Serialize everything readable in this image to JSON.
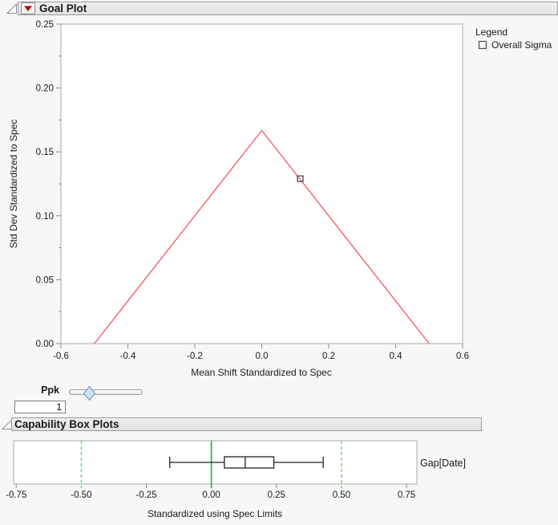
{
  "colors": {
    "page_bg": "#f7f7f7",
    "panel_bg": "#ffffff",
    "header_bg_top": "#f1f1f1",
    "header_bg_bottom": "#e2e2e2",
    "header_border": "#9b9b9b",
    "frame_border": "#a8a8a8",
    "tick": "#8c8c8c",
    "text": "#1a1a1a",
    "goal_line": "#ef5f70",
    "marker_stroke": "#3c3c3c",
    "spec_solid_green": "#46bd46",
    "spec_dash_green": "#72d872",
    "box_stroke": "#222222",
    "red_triangle": "#c00505",
    "slider_thumb_fill": "#cfe2f5",
    "slider_thumb_stroke": "#6a8fbf"
  },
  "goal_plot_section": {
    "title": "Goal Plot",
    "legend_title": "Legend",
    "legend_item": "Overall Sigma",
    "ppk_label": "Ppk",
    "ppk_value": "1"
  },
  "box_plots_section": {
    "title": "Capability Box Plots",
    "row_label": "Gap[Date]"
  },
  "chart_data": [
    {
      "type": "line",
      "name": "goal-plot",
      "xlabel": "Mean Shift Standardized to Spec",
      "ylabel": "Std Dev Standardized to Spec",
      "xlim": [
        -0.6,
        0.6
      ],
      "ylim": [
        0,
        0.25
      ],
      "x_ticks": [
        -0.6,
        -0.4,
        -0.2,
        0.0,
        0.2,
        0.4,
        0.6
      ],
      "x_tick_labels": [
        "-0.6",
        "-0.4",
        "-0.2",
        "0.0",
        "0.2",
        "0.4",
        "0.6"
      ],
      "y_ticks": [
        0.0,
        0.05,
        0.1,
        0.15,
        0.2,
        0.25
      ],
      "y_tick_labels": [
        "0.00",
        "0.05",
        "0.10",
        "0.15",
        "0.20",
        "0.25"
      ],
      "y_minor_step": 0.025,
      "triangle_line": [
        [
          -0.5,
          0
        ],
        [
          0,
          0.1667
        ],
        [
          0.5,
          0
        ]
      ],
      "points": [
        {
          "label": "Overall Sigma",
          "x": 0.115,
          "y": 0.129,
          "marker": "square-outline"
        }
      ],
      "legend_position": "right",
      "grid": false
    },
    {
      "type": "boxplot",
      "name": "capability-box-plot",
      "xlabel": "Standardized using Spec Limits",
      "row_label": "Gap[Date]",
      "xlim": [
        -0.76,
        0.79
      ],
      "x_ticks": [
        -0.75,
        -0.5,
        -0.25,
        0.0,
        0.25,
        0.5,
        0.75
      ],
      "x_tick_labels": [
        "-0.75",
        "-0.50",
        "-0.25",
        "0.00",
        "0.25",
        "0.50",
        "0.75"
      ],
      "box": {
        "min": -0.16,
        "q1": 0.05,
        "median": 0.13,
        "q3": 0.24,
        "max": 0.43
      },
      "spec_lines": {
        "lower": -0.5,
        "center": 0.0,
        "upper": 0.5
      },
      "grid": false
    }
  ]
}
